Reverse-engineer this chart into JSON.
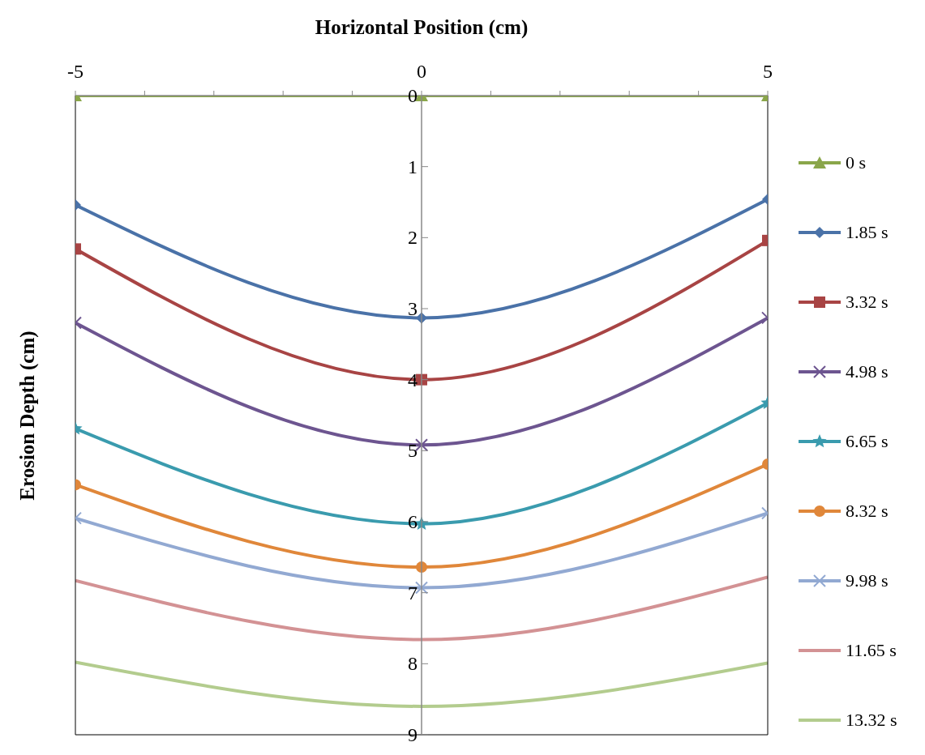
{
  "chart_data": {
    "type": "line",
    "xlabel": "Horizontal Position (cm)",
    "ylabel": "Erosion Depth (cm)",
    "x": [
      -5,
      0,
      5
    ],
    "xlim": [
      -5,
      5
    ],
    "xticks": [
      -5,
      {
        "value": -4,
        "label": null
      },
      {
        "value": -3,
        "label": null
      },
      {
        "value": -2,
        "label": null
      },
      {
        "value": -1,
        "label": null
      },
      0,
      {
        "value": 1,
        "label": null
      },
      {
        "value": 2,
        "label": null
      },
      {
        "value": 3,
        "label": null
      },
      {
        "value": 4,
        "label": null
      },
      5
    ],
    "ylim": [
      9,
      0
    ],
    "yticks": [
      0,
      1,
      2,
      3,
      4,
      5,
      6,
      7,
      8,
      9
    ],
    "grid": false,
    "legend": "right",
    "series": [
      {
        "name": "0 s",
        "color": "#8aa64a",
        "marker": "triangle",
        "values": [
          0,
          0,
          0
        ]
      },
      {
        "name": "1.85 s",
        "color": "#4a72a8",
        "marker": "diamond",
        "values": [
          1.54,
          3.13,
          1.46
        ]
      },
      {
        "name": "3.32 s",
        "color": "#a84444",
        "marker": "square",
        "values": [
          2.16,
          4.0,
          2.04
        ]
      },
      {
        "name": "4.98 s",
        "color": "#6d5590",
        "marker": "cross",
        "values": [
          3.2,
          4.92,
          3.13
        ]
      },
      {
        "name": "6.65 s",
        "color": "#3a9bae",
        "marker": "star",
        "values": [
          4.69,
          6.03,
          4.33
        ]
      },
      {
        "name": "8.32 s",
        "color": "#e0873a",
        "marker": "circle",
        "values": [
          5.48,
          6.64,
          5.19
        ]
      },
      {
        "name": "9.98 s",
        "color": "#92a9d2",
        "marker": "cross",
        "values": [
          5.95,
          6.93,
          5.88
        ]
      },
      {
        "name": "11.65 s",
        "color": "#d39294",
        "marker": "none",
        "values": [
          6.83,
          7.66,
          6.78
        ]
      },
      {
        "name": "13.32 s",
        "color": "#b3cc8e",
        "marker": "none",
        "values": [
          7.98,
          8.6,
          7.99
        ]
      }
    ]
  }
}
